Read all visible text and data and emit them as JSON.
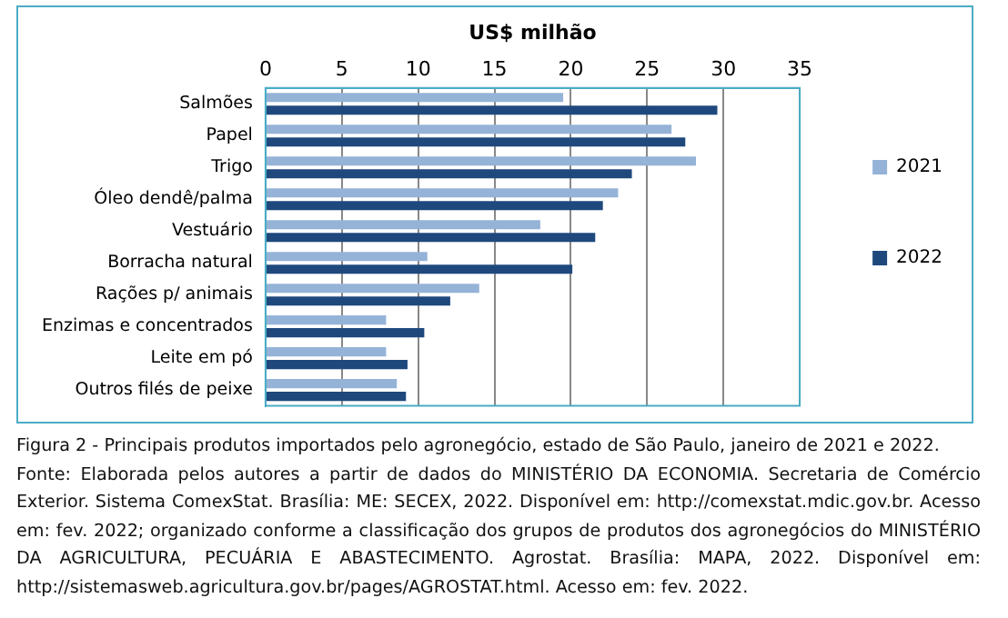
{
  "chart_data": {
    "type": "bar",
    "orientation": "horizontal",
    "title": "Figura 2 - Principais produtos importados pelo agronegócio, estado de São Paulo, janeiro de 2021 e 2022.",
    "xlabel": "US$ milhão",
    "categories": [
      "Salmões",
      "Papel",
      "Trigo",
      "Óleo dendê/palma",
      "Vestuário",
      "Borracha natural",
      "Rações p/ animais",
      "Enzimas e concentrados",
      "Leite em pó",
      "Outros filés de peixe"
    ],
    "series": [
      {
        "name": "2021",
        "color": "#95b3d7",
        "values": [
          19.5,
          26.6,
          28.2,
          23.1,
          18.0,
          10.6,
          14.0,
          7.9,
          7.9,
          8.6
        ]
      },
      {
        "name": "2022",
        "color": "#1f497d",
        "values": [
          29.6,
          27.5,
          24.0,
          22.1,
          21.6,
          20.1,
          12.1,
          10.4,
          9.3,
          9.2
        ]
      }
    ],
    "xlim": [
      0,
      35
    ],
    "xticks": [
      0,
      5,
      10,
      15,
      20,
      25,
      30,
      35
    ],
    "grid": "x",
    "legend": "right",
    "annotations": [
      "Fonte: Elaborada pelos autores a partir de dados do MINISTÉRIO DA ECONOMIA. Secretaria de Comércio Exterior. Sistema ComexStat. Brasília: ME: SECEX, 2022. Disponível em: http://comexstat.mdic.gov.br. Acesso em: fev. 2022; organizado conforme a classificação dos grupos de produtos dos agronegócios do MINISTÉRIO DA AGRICULTURA, PECUÁRIA E ABASTECIMENTO. Agrostat. Brasília: MAPA, 2022. Disponível em: http://sistemasweb.agricultura.gov.br/pages/AGROSTAT.html. Acesso em: fev. 2022."
    ]
  }
}
